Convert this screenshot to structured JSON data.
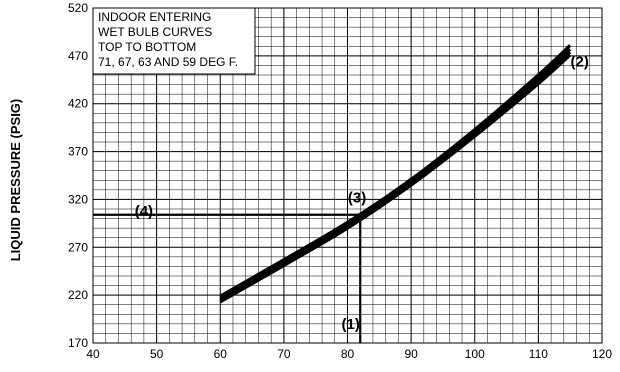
{
  "chart_data": {
    "type": "line",
    "title": "",
    "xlabel": "",
    "ylabel": "LIQUID PRESSURE (PSIG)",
    "xlim": [
      40,
      120
    ],
    "ylim": [
      170,
      520
    ],
    "x_ticks": [
      "40",
      "50",
      "60",
      "70",
      "80",
      "90",
      "100",
      "110",
      "120"
    ],
    "y_ticks": [
      "170",
      "220",
      "270",
      "320",
      "370",
      "420",
      "470",
      "520"
    ],
    "grid": true,
    "legend_box": {
      "lines": [
        "INDOOR ENTERING",
        "WET BULB CURVES",
        "TOP TO BOTTOM",
        "71, 67, 63 AND 59 DEG F."
      ],
      "placement": "top-left"
    },
    "series": [
      {
        "values": [
          {
            "x": 60,
            "y": 219
          },
          {
            "x": 70,
            "y": 257
          },
          {
            "x": 80,
            "y": 296
          },
          {
            "x": 90,
            "y": 341
          },
          {
            "x": 100,
            "y": 393
          },
          {
            "x": 110,
            "y": 450
          },
          {
            "x": 115,
            "y": 481
          }
        ]
      },
      {
        "values": [
          {
            "x": 60,
            "y": 217
          },
          {
            "x": 70,
            "y": 255
          },
          {
            "x": 80,
            "y": 294
          },
          {
            "x": 90,
            "y": 339
          },
          {
            "x": 100,
            "y": 390
          },
          {
            "x": 110,
            "y": 447
          },
          {
            "x": 115,
            "y": 477
          }
        ]
      },
      {
        "values": [
          {
            "x": 60,
            "y": 215
          },
          {
            "x": 70,
            "y": 253
          },
          {
            "x": 80,
            "y": 292
          },
          {
            "x": 90,
            "y": 337
          },
          {
            "x": 100,
            "y": 388
          },
          {
            "x": 110,
            "y": 444
          },
          {
            "x": 115,
            "y": 474
          }
        ]
      },
      {
        "values": [
          {
            "x": 60,
            "y": 213
          },
          {
            "x": 70,
            "y": 251
          },
          {
            "x": 80,
            "y": 290
          },
          {
            "x": 90,
            "y": 335
          },
          {
            "x": 100,
            "y": 386
          },
          {
            "x": 110,
            "y": 441
          },
          {
            "x": 115,
            "y": 471
          }
        ]
      }
    ],
    "reference_lines": {
      "vertical": {
        "x": 82,
        "y_from": 170,
        "y_to": 304
      },
      "horizontal": {
        "y": 304,
        "x_from": 40,
        "x_to": 82
      }
    },
    "annotations": [
      {
        "text": "(1)",
        "x": 80.5,
        "y": 190
      },
      {
        "text": "(2)",
        "x": 116.5,
        "y": 464
      },
      {
        "text": "(3)",
        "x": 81.5,
        "y": 322
      },
      {
        "text": "(4)",
        "x": 48,
        "y": 308
      }
    ]
  }
}
